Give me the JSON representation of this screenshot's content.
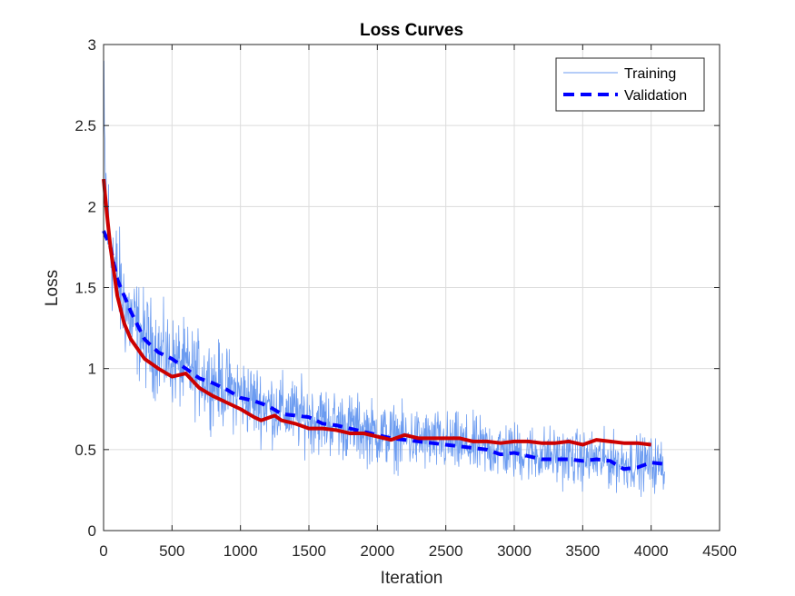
{
  "chart_data": {
    "type": "line",
    "title": "Loss Curves",
    "xlabel": "Iteration",
    "ylabel": "Loss",
    "xlim": [
      0,
      4500
    ],
    "ylim": [
      0,
      3
    ],
    "x_ticks": [
      0,
      500,
      1000,
      1500,
      2000,
      2500,
      3000,
      3500,
      4000,
      4500
    ],
    "y_ticks": [
      "0",
      "0.5",
      "1",
      "1.5",
      "2",
      "2.5",
      "3"
    ],
    "grid": true,
    "legend_position": "top-right",
    "series": [
      {
        "name": "Training",
        "color": "#6b9bf0",
        "style": "solid-thin",
        "noisy": true,
        "x": [
          0,
          10,
          25,
          50,
          100,
          150,
          200,
          300,
          400,
          500,
          600,
          700,
          800,
          900,
          1000,
          1100,
          1200,
          1300,
          1400,
          1500,
          1600,
          1700,
          1800,
          1900,
          2000,
          2100,
          2200,
          2300,
          2400,
          2500,
          2600,
          2700,
          2800,
          2900,
          3000,
          3100,
          3200,
          3300,
          3400,
          3500,
          3600,
          3700,
          3800,
          3900,
          4000,
          4100
        ],
        "values": [
          2.6,
          2.2,
          1.95,
          1.75,
          1.55,
          1.4,
          1.3,
          1.18,
          1.1,
          1.05,
          1.0,
          0.96,
          0.92,
          0.88,
          0.84,
          0.8,
          0.77,
          0.74,
          0.72,
          0.7,
          0.68,
          0.66,
          0.64,
          0.62,
          0.6,
          0.58,
          0.57,
          0.56,
          0.55,
          0.54,
          0.53,
          0.52,
          0.51,
          0.5,
          0.49,
          0.48,
          0.47,
          0.46,
          0.45,
          0.44,
          0.44,
          0.43,
          0.42,
          0.42,
          0.41,
          0.4
        ]
      },
      {
        "name": "Validation",
        "color": "#0000ff",
        "style": "dashed",
        "x": [
          0,
          50,
          100,
          200,
          300,
          400,
          500,
          600,
          700,
          800,
          900,
          1000,
          1100,
          1200,
          1300,
          1400,
          1500,
          1600,
          1700,
          1800,
          1900,
          2000,
          2100,
          2200,
          2300,
          2400,
          2500,
          2600,
          2700,
          2800,
          2900,
          3000,
          3100,
          3200,
          3300,
          3400,
          3500,
          3600,
          3700,
          3800,
          3900,
          4000,
          4100
        ],
        "values": [
          1.85,
          1.75,
          1.55,
          1.35,
          1.18,
          1.1,
          1.06,
          1.0,
          0.94,
          0.91,
          0.87,
          0.82,
          0.8,
          0.77,
          0.72,
          0.71,
          0.7,
          0.66,
          0.65,
          0.63,
          0.61,
          0.59,
          0.57,
          0.56,
          0.55,
          0.54,
          0.53,
          0.52,
          0.51,
          0.5,
          0.47,
          0.48,
          0.46,
          0.44,
          0.44,
          0.44,
          0.43,
          0.44,
          0.43,
          0.38,
          0.39,
          0.42,
          0.41
        ]
      },
      {
        "name": "",
        "color": "#cc0000",
        "style": "solid-thick",
        "x": [
          0,
          25,
          50,
          100,
          150,
          200,
          250,
          300,
          400,
          500,
          600,
          700,
          800,
          900,
          1000,
          1100,
          1150,
          1250,
          1300,
          1400,
          1500,
          1600,
          1700,
          1800,
          1900,
          2000,
          2100,
          2200,
          2250,
          2300,
          2400,
          2500,
          2600,
          2700,
          2800,
          2900,
          3000,
          3100,
          3200,
          3300,
          3400,
          3500,
          3600,
          3700,
          3800,
          3900,
          4000
        ],
        "values": [
          2.17,
          1.95,
          1.75,
          1.45,
          1.28,
          1.18,
          1.12,
          1.06,
          1.0,
          0.95,
          0.97,
          0.88,
          0.83,
          0.79,
          0.75,
          0.7,
          0.68,
          0.71,
          0.68,
          0.66,
          0.63,
          0.63,
          0.62,
          0.6,
          0.6,
          0.58,
          0.56,
          0.59,
          0.58,
          0.57,
          0.57,
          0.57,
          0.57,
          0.55,
          0.55,
          0.54,
          0.55,
          0.55,
          0.54,
          0.54,
          0.55,
          0.53,
          0.56,
          0.55,
          0.54,
          0.54,
          0.53
        ]
      }
    ]
  }
}
